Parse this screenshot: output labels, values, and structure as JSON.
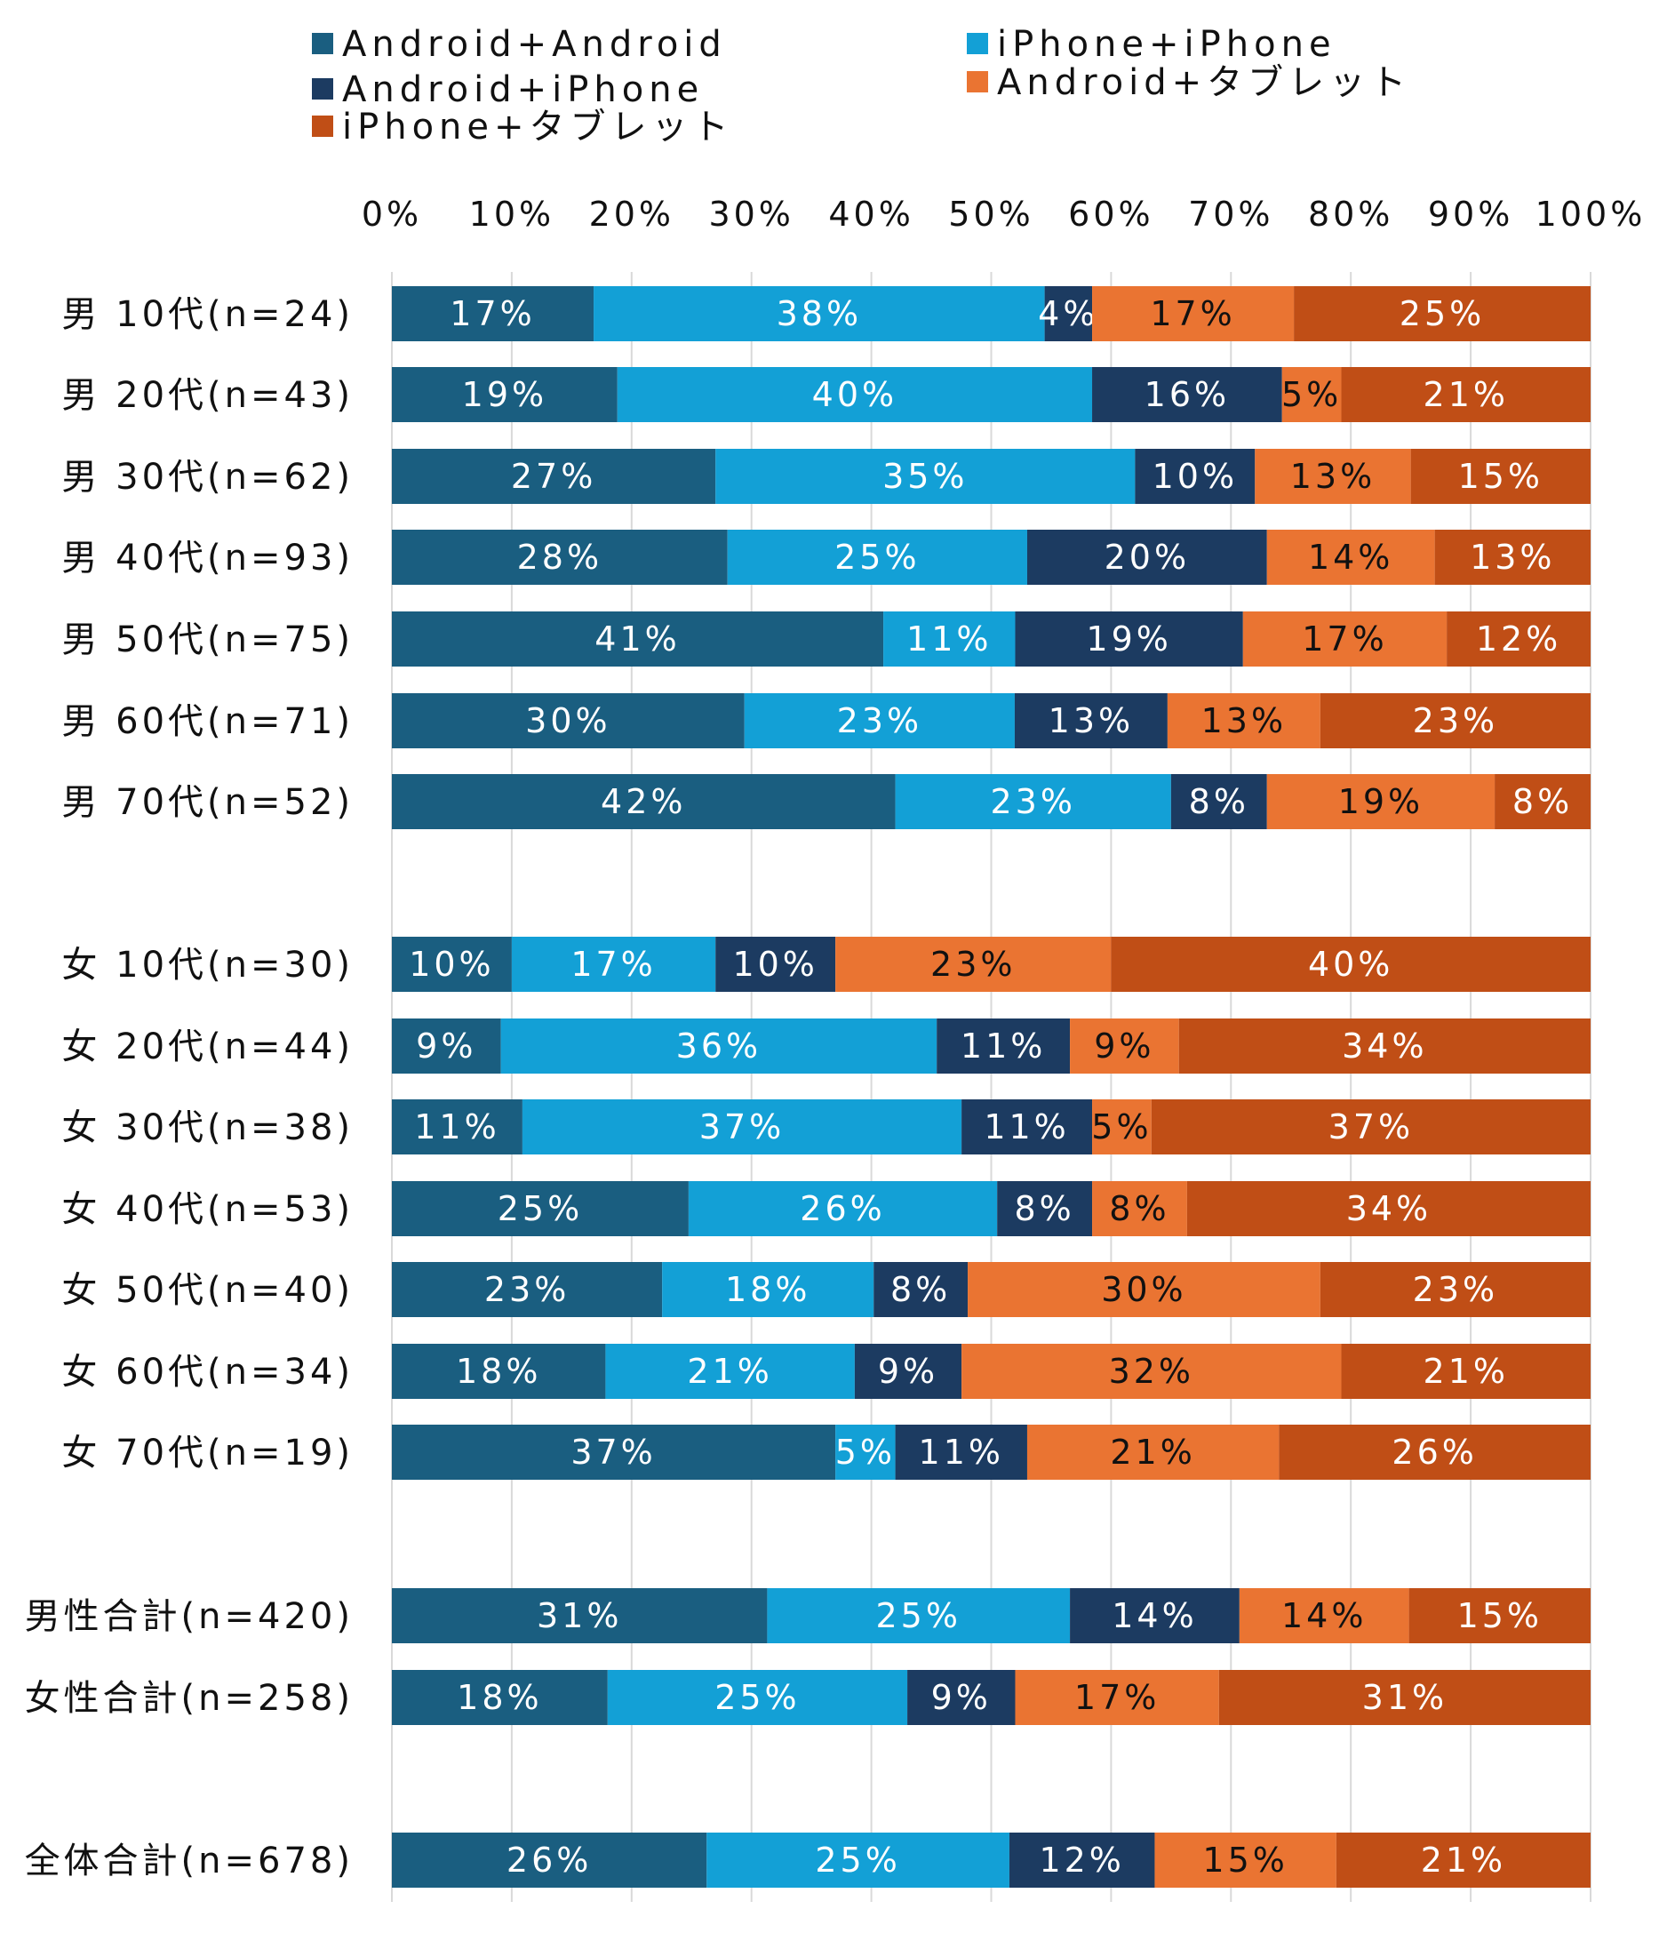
{
  "chart_data": {
    "type": "bar",
    "orientation": "horizontal",
    "stacked": "percent",
    "xlim": [
      0,
      100
    ],
    "ticks": [
      "0%",
      "10%",
      "20%",
      "30%",
      "40%",
      "50%",
      "60%",
      "70%",
      "80%",
      "90%",
      "100%"
    ],
    "grid": "vertical",
    "legend_position": "top",
    "categories": [
      "男 10代(n=24)",
      "男 20代(n=43)",
      "男 30代(n=62)",
      "男 40代(n=93)",
      "男 50代(n=75)",
      "男 60代(n=71)",
      "男 70代(n=52)",
      "女 10代(n=30)",
      "女 20代(n=44)",
      "女 30代(n=38)",
      "女 40代(n=53)",
      "女 50代(n=40)",
      "女 60代(n=34)",
      "女 70代(n=19)",
      "男性合計(n=420)",
      "女性合計(n=258)",
      "全体合計(n=678)"
    ],
    "series": [
      {
        "name": "Android+Android",
        "color": "#1a5e80",
        "label_color": "#ffffff",
        "values": [
          17,
          19,
          27,
          28,
          41,
          30,
          42,
          10,
          9,
          11,
          25,
          23,
          18,
          37,
          31,
          18,
          26
        ]
      },
      {
        "name": "iPhone+iPhone",
        "color": "#13a0d6",
        "label_color": "#ffffff",
        "values": [
          38,
          40,
          35,
          25,
          11,
          23,
          23,
          17,
          36,
          37,
          26,
          18,
          21,
          5,
          25,
          25,
          25
        ]
      },
      {
        "name": "Android+iPhone",
        "color": "#1c3b61",
        "label_color": "#ffffff",
        "values": [
          4,
          16,
          10,
          20,
          19,
          13,
          8,
          10,
          11,
          11,
          8,
          8,
          9,
          11,
          14,
          9,
          12
        ]
      },
      {
        "name": "Android+タブレット",
        "color": "#ea7432",
        "label_color": "#111111",
        "values": [
          17,
          5,
          13,
          14,
          17,
          13,
          19,
          23,
          9,
          5,
          8,
          30,
          32,
          21,
          14,
          17,
          15
        ]
      },
      {
        "name": "iPhone+タブレット",
        "color": "#c04e16",
        "label_color": "#ffffff",
        "values": [
          25,
          21,
          15,
          13,
          12,
          23,
          8,
          40,
          34,
          37,
          34,
          23,
          21,
          26,
          15,
          31,
          21
        ]
      }
    ]
  }
}
